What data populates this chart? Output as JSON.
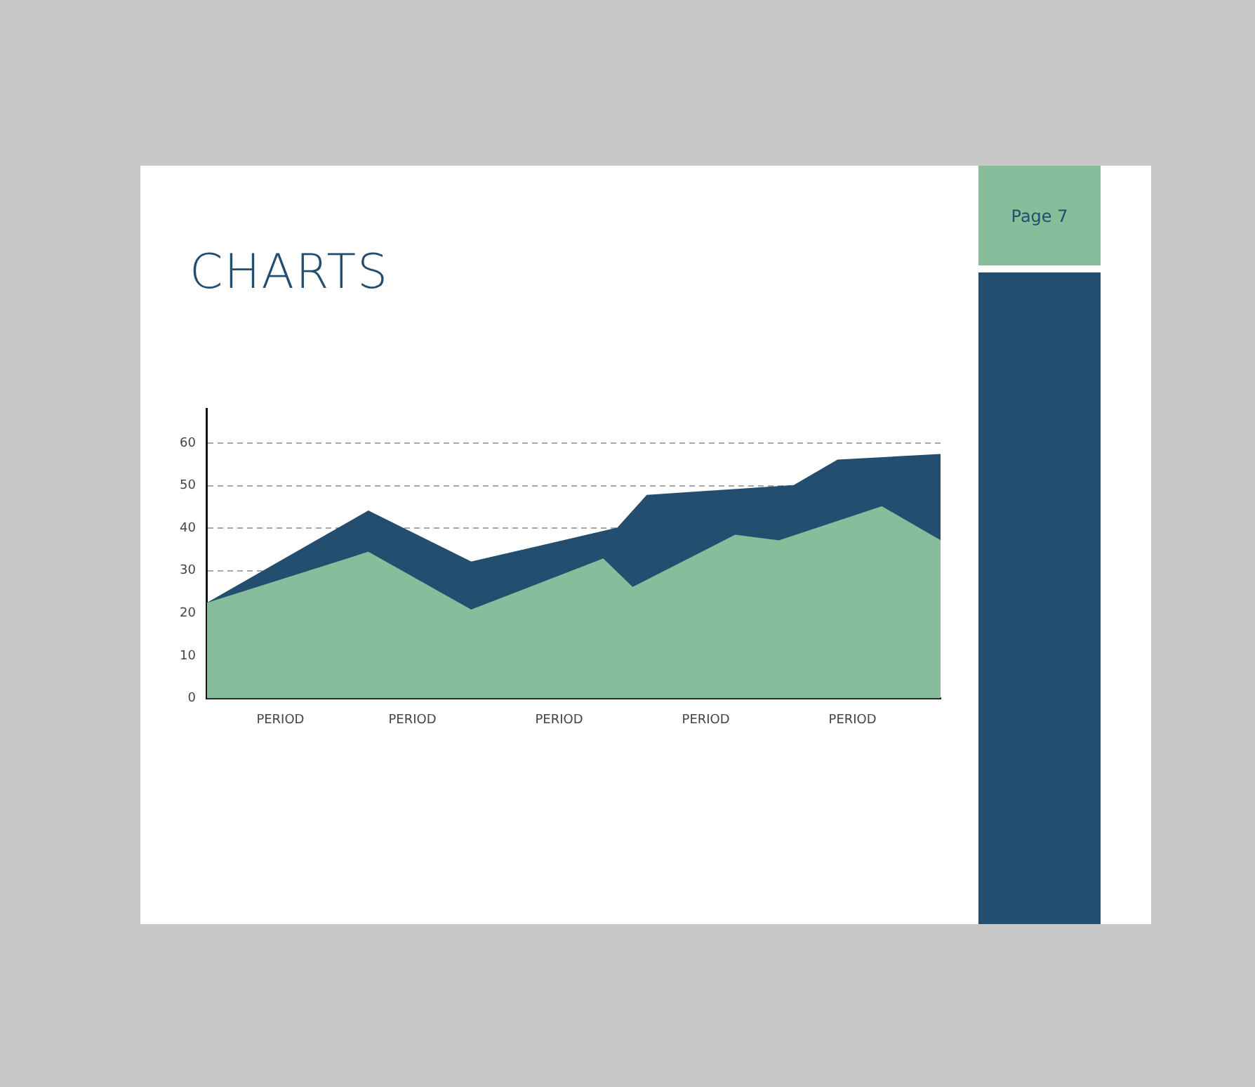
{
  "chart_data": {
    "type": "area",
    "title": "CHARTS",
    "annotations": [
      "Page 7"
    ],
    "categories": [
      null,
      null,
      null,
      null,
      null,
      "PERIOD",
      null,
      null,
      null,
      null,
      null,
      null,
      null,
      null,
      "PERIOD",
      null,
      null,
      null,
      null,
      null,
      null,
      null,
      null,
      null,
      "PERIOD",
      null,
      null,
      null,
      null,
      null,
      null,
      null,
      null,
      null,
      "PERIOD",
      null,
      null,
      null,
      null,
      null,
      null,
      null,
      null,
      null,
      "PERIOD",
      null,
      null,
      null,
      null,
      null,
      null
    ],
    "ylim": [
      0,
      68
    ],
    "yticks": [
      0,
      10,
      20,
      30,
      40,
      50,
      60
    ],
    "grid": "y",
    "marker": "none",
    "series": [
      {
        "color": "#88bd9b",
        "values": [
          22.3,
          null,
          null,
          null,
          null,
          null,
          null,
          null,
          null,
          null,
          null,
          34.3,
          null,
          null,
          null,
          null,
          null,
          null,
          20.7,
          null,
          null,
          null,
          null,
          null,
          null,
          null,
          null,
          32.7,
          null,
          26,
          null,
          null,
          null,
          null,
          null,
          null,
          38.3,
          null,
          null,
          37,
          null,
          null,
          null,
          null,
          null,
          null,
          45,
          null,
          null,
          null,
          37
        ]
      },
      {
        "color": "#234e70",
        "values": [
          22.3,
          null,
          null,
          null,
          null,
          null,
          null,
          null,
          null,
          null,
          null,
          44,
          null,
          null,
          null,
          null,
          null,
          null,
          32,
          null,
          null,
          null,
          null,
          null,
          null,
          null,
          null,
          null,
          40,
          null,
          47.7,
          null,
          null,
          null,
          null,
          null,
          null,
          null,
          null,
          null,
          50,
          null,
          null,
          56,
          null,
          null,
          null,
          null,
          null,
          null,
          57.3
        ]
      }
    ]
  }
}
